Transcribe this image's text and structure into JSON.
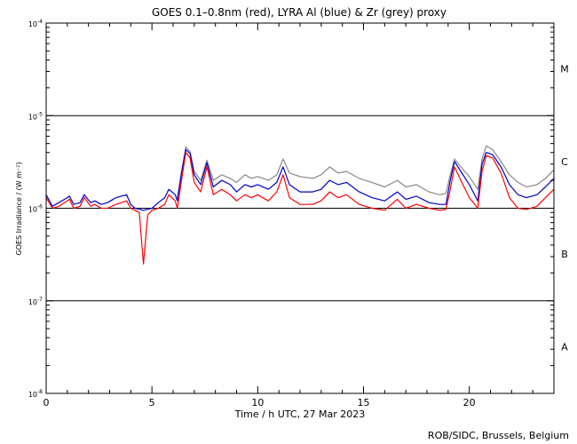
{
  "chart_data": {
    "type": "line",
    "title": "GOES 0.1–0.8nm (red), LYRA Al (blue) & Zr (grey) proxy",
    "xlabel": "Time / h UTC, 27 Mar 2023",
    "ylabel": "GOES Irradiance / (W m⁻²)",
    "credit": "ROB/SIDC, Brussels, Belgium",
    "xlim": [
      0,
      24
    ],
    "ylim": [
      1e-08,
      0.0001
    ],
    "yscale": "log",
    "x_ticks": [
      {
        "value": 0,
        "label": "0"
      },
      {
        "value": 5,
        "label": "5"
      },
      {
        "value": 10,
        "label": "10"
      },
      {
        "value": 15,
        "label": "15"
      },
      {
        "value": 20,
        "label": "20"
      }
    ],
    "y_ticks": [
      {
        "value": 0.0001,
        "base": "10",
        "exp": "-4"
      },
      {
        "value": 1e-05,
        "base": "10",
        "exp": "-5"
      },
      {
        "value": 1e-06,
        "base": "10",
        "exp": "-6"
      },
      {
        "value": 1e-07,
        "base": "10",
        "exp": "-7"
      },
      {
        "value": 1e-08,
        "base": "10",
        "exp": "-8"
      }
    ],
    "flare_classes": [
      {
        "label": "M",
        "value": 3.2e-05
      },
      {
        "label": "C",
        "value": 3.2e-06
      },
      {
        "label": "B",
        "value": 3.2e-07
      },
      {
        "label": "A",
        "value": 3.2e-08
      }
    ],
    "class_lines": [
      1e-05,
      1e-06,
      1e-07
    ],
    "colors": {
      "goes": "#ff0000",
      "lyra_al": "#0000cc",
      "lyra_zr": "#888888",
      "axis": "#000000"
    },
    "series": [
      {
        "name": "GOES 0.1–0.8nm",
        "color": "#ff0000",
        "x": [
          0,
          0.3,
          0.6,
          1.0,
          1.1,
          1.3,
          1.6,
          1.8,
          2.1,
          2.3,
          2.6,
          2.9,
          3.3,
          3.8,
          4.0,
          4.2,
          4.4,
          4.6,
          4.8,
          5.0,
          5.3,
          5.6,
          5.8,
          6.1,
          6.2,
          6.4,
          6.6,
          6.8,
          7.0,
          7.3,
          7.6,
          7.9,
          8.3,
          8.7,
          9.0,
          9.4,
          9.7,
          10.0,
          10.5,
          10.9,
          11.2,
          11.5,
          12.0,
          12.6,
          13.0,
          13.4,
          13.8,
          14.2,
          14.8,
          15.4,
          16.0,
          16.6,
          17.0,
          17.5,
          18.1,
          18.6,
          18.9,
          19.1,
          19.3,
          19.6,
          20.0,
          20.4,
          20.6,
          20.8,
          21.1,
          21.5,
          21.9,
          22.3,
          22.7,
          23.2,
          23.6,
          24.0
        ],
        "y": [
          1.3e-06,
          1e-06,
          1.05e-06,
          1.2e-06,
          1.25e-06,
          1e-06,
          1.05e-06,
          1.3e-06,
          1.05e-06,
          1.1e-06,
          1e-06,
          1e-06,
          1.1e-06,
          1.2e-06,
          1e-06,
          9.5e-07,
          9e-07,
          2.5e-07,
          8.5e-07,
          9.5e-07,
          1e-06,
          1.1e-06,
          1.4e-06,
          1.2e-06,
          1e-06,
          2e-06,
          4e-06,
          3.5e-06,
          1.9e-06,
          1.5e-06,
          2.8e-06,
          1.4e-06,
          1.6e-06,
          1.4e-06,
          1.2e-06,
          1.4e-06,
          1.3e-06,
          1.4e-06,
          1.2e-06,
          1.5e-06,
          2.3e-06,
          1.3e-06,
          1.1e-06,
          1.1e-06,
          1.2e-06,
          1.5e-06,
          1.3e-06,
          1.4e-06,
          1.1e-06,
          1e-06,
          9.5e-07,
          1.25e-06,
          1e-06,
          1.1e-06,
          1e-06,
          9.5e-07,
          9.7e-07,
          1.6e-06,
          2.8e-06,
          2e-06,
          1.3e-06,
          1e-06,
          2.5e-06,
          3.7e-06,
          3.5e-06,
          2.4e-06,
          1.3e-06,
          1e-06,
          9.7e-07,
          1.05e-06,
          1.3e-06,
          1.6e-06
        ]
      },
      {
        "name": "LYRA Al proxy",
        "color": "#0000cc",
        "x": [
          0,
          0.3,
          0.6,
          1.0,
          1.1,
          1.3,
          1.6,
          1.8,
          2.1,
          2.3,
          2.6,
          2.9,
          3.3,
          3.8,
          4.0,
          4.2,
          4.6,
          5.0,
          5.3,
          5.6,
          5.8,
          6.1,
          6.2,
          6.4,
          6.6,
          6.8,
          7.0,
          7.3,
          7.6,
          7.9,
          8.3,
          8.7,
          9.0,
          9.4,
          9.7,
          10.0,
          10.5,
          10.9,
          11.2,
          11.5,
          12.0,
          12.6,
          13.0,
          13.4,
          13.8,
          14.2,
          14.8,
          15.4,
          16.0,
          16.6,
          17.0,
          17.5,
          18.1,
          18.6,
          18.9,
          19.1,
          19.3,
          19.6,
          20.0,
          20.4,
          20.6,
          20.8,
          21.1,
          21.5,
          21.9,
          22.3,
          22.7,
          23.2,
          23.6,
          24.0
        ],
        "y": [
          1.4e-06,
          1.05e-06,
          1.15e-06,
          1.3e-06,
          1.35e-06,
          1.1e-06,
          1.15e-06,
          1.4e-06,
          1.15e-06,
          1.2e-06,
          1.1e-06,
          1.15e-06,
          1.3e-06,
          1.4e-06,
          1.1e-06,
          1e-06,
          9.5e-07,
          1e-06,
          1.15e-06,
          1.3e-06,
          1.6e-06,
          1.4e-06,
          1.2e-06,
          2.4e-06,
          4.3e-06,
          3.9e-06,
          2.3e-06,
          1.8e-06,
          3.1e-06,
          1.7e-06,
          2e-06,
          1.8e-06,
          1.5e-06,
          1.8e-06,
          1.7e-06,
          1.8e-06,
          1.6e-06,
          1.9e-06,
          2.8e-06,
          1.8e-06,
          1.5e-06,
          1.5e-06,
          1.6e-06,
          2e-06,
          1.8e-06,
          1.9e-06,
          1.5e-06,
          1.3e-06,
          1.2e-06,
          1.5e-06,
          1.25e-06,
          1.35e-06,
          1.15e-06,
          1.1e-06,
          1.1e-06,
          2e-06,
          3.2e-06,
          2.5e-06,
          1.8e-06,
          1.2e-06,
          3e-06,
          4e-06,
          3.8e-06,
          2.8e-06,
          1.8e-06,
          1.4e-06,
          1.3e-06,
          1.4e-06,
          1.7e-06,
          2.1e-06
        ]
      },
      {
        "name": "LYRA Zr proxy",
        "color": "#888888",
        "x": [
          6.2,
          6.4,
          6.6,
          6.8,
          7.0,
          7.3,
          7.6,
          7.9,
          8.3,
          8.7,
          9.0,
          9.4,
          9.7,
          10.0,
          10.5,
          10.9,
          11.2,
          11.5,
          12.0,
          12.6,
          13.0,
          13.4,
          13.8,
          14.2,
          14.8,
          15.4,
          16.0,
          16.6,
          17.0,
          17.5,
          18.1,
          18.6,
          18.9,
          19.1,
          19.3,
          19.6,
          20.0,
          20.4,
          20.6,
          20.8,
          21.1,
          21.5,
          21.9,
          22.3,
          22.7,
          23.2,
          23.6,
          24.0
        ],
        "y": [
          1.3e-06,
          2.5e-06,
          4.6e-06,
          4.1e-06,
          2.5e-06,
          2e-06,
          3.3e-06,
          2e-06,
          2.3e-06,
          2.1e-06,
          1.9e-06,
          2.3e-06,
          2.1e-06,
          2.2e-06,
          2e-06,
          2.3e-06,
          3.4e-06,
          2.4e-06,
          2.2e-06,
          2.1e-06,
          2.3e-06,
          2.8e-06,
          2.4e-06,
          2.5e-06,
          2.1e-06,
          1.9e-06,
          1.7e-06,
          2e-06,
          1.7e-06,
          1.8e-06,
          1.5e-06,
          1.4e-06,
          1.45e-06,
          2.3e-06,
          3.4e-06,
          2.8e-06,
          2.2e-06,
          1.6e-06,
          3.4e-06,
          4.7e-06,
          4.3e-06,
          3.2e-06,
          2.3e-06,
          1.9e-06,
          1.7e-06,
          1.8e-06,
          2.1e-06,
          2.6e-06
        ]
      }
    ]
  }
}
